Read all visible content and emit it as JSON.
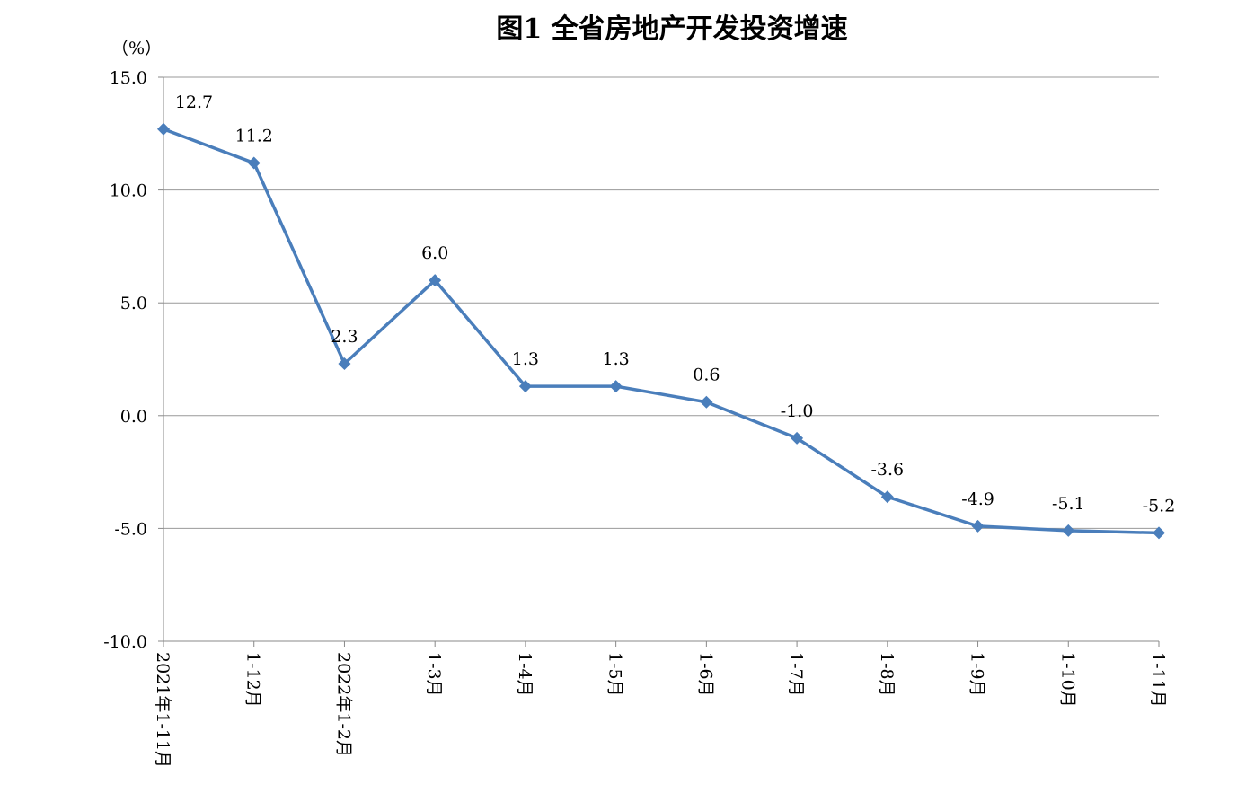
{
  "chart_data": {
    "type": "line",
    "title": "图1 全省房地产开发投资增速",
    "y_unit": "（%）",
    "categories": [
      "2021年1-11月",
      "1-12月",
      "2022年1-2月",
      "1-3月",
      "1-4月",
      "1-5月",
      "1-6月",
      "1-7月",
      "1-8月",
      "1-9月",
      "1-10月",
      "1-11月"
    ],
    "series": [
      {
        "name": "全省房地产开发投资增速",
        "color": "#4a7ebb",
        "values": [
          12.7,
          11.2,
          2.3,
          6.0,
          1.3,
          1.3,
          0.6,
          -1.0,
          -3.6,
          -4.9,
          -5.1,
          -5.2
        ],
        "value_labels": [
          "12.7",
          "11.2",
          "2.3",
          "6.0",
          "1.3",
          "1.3",
          "0.6",
          "-1.0",
          "-3.6",
          "-4.9",
          "-5.1",
          "-5.2"
        ]
      }
    ],
    "ylim": [
      -10,
      15
    ],
    "yticks": [
      {
        "value": -10,
        "label": "-10.0"
      },
      {
        "value": -5,
        "label": "-5.0"
      },
      {
        "value": 0,
        "label": "0.0"
      },
      {
        "value": 5,
        "label": "5.0"
      },
      {
        "value": 10,
        "label": "10.0"
      },
      {
        "value": 15,
        "label": "15.0"
      }
    ],
    "grid": true
  }
}
